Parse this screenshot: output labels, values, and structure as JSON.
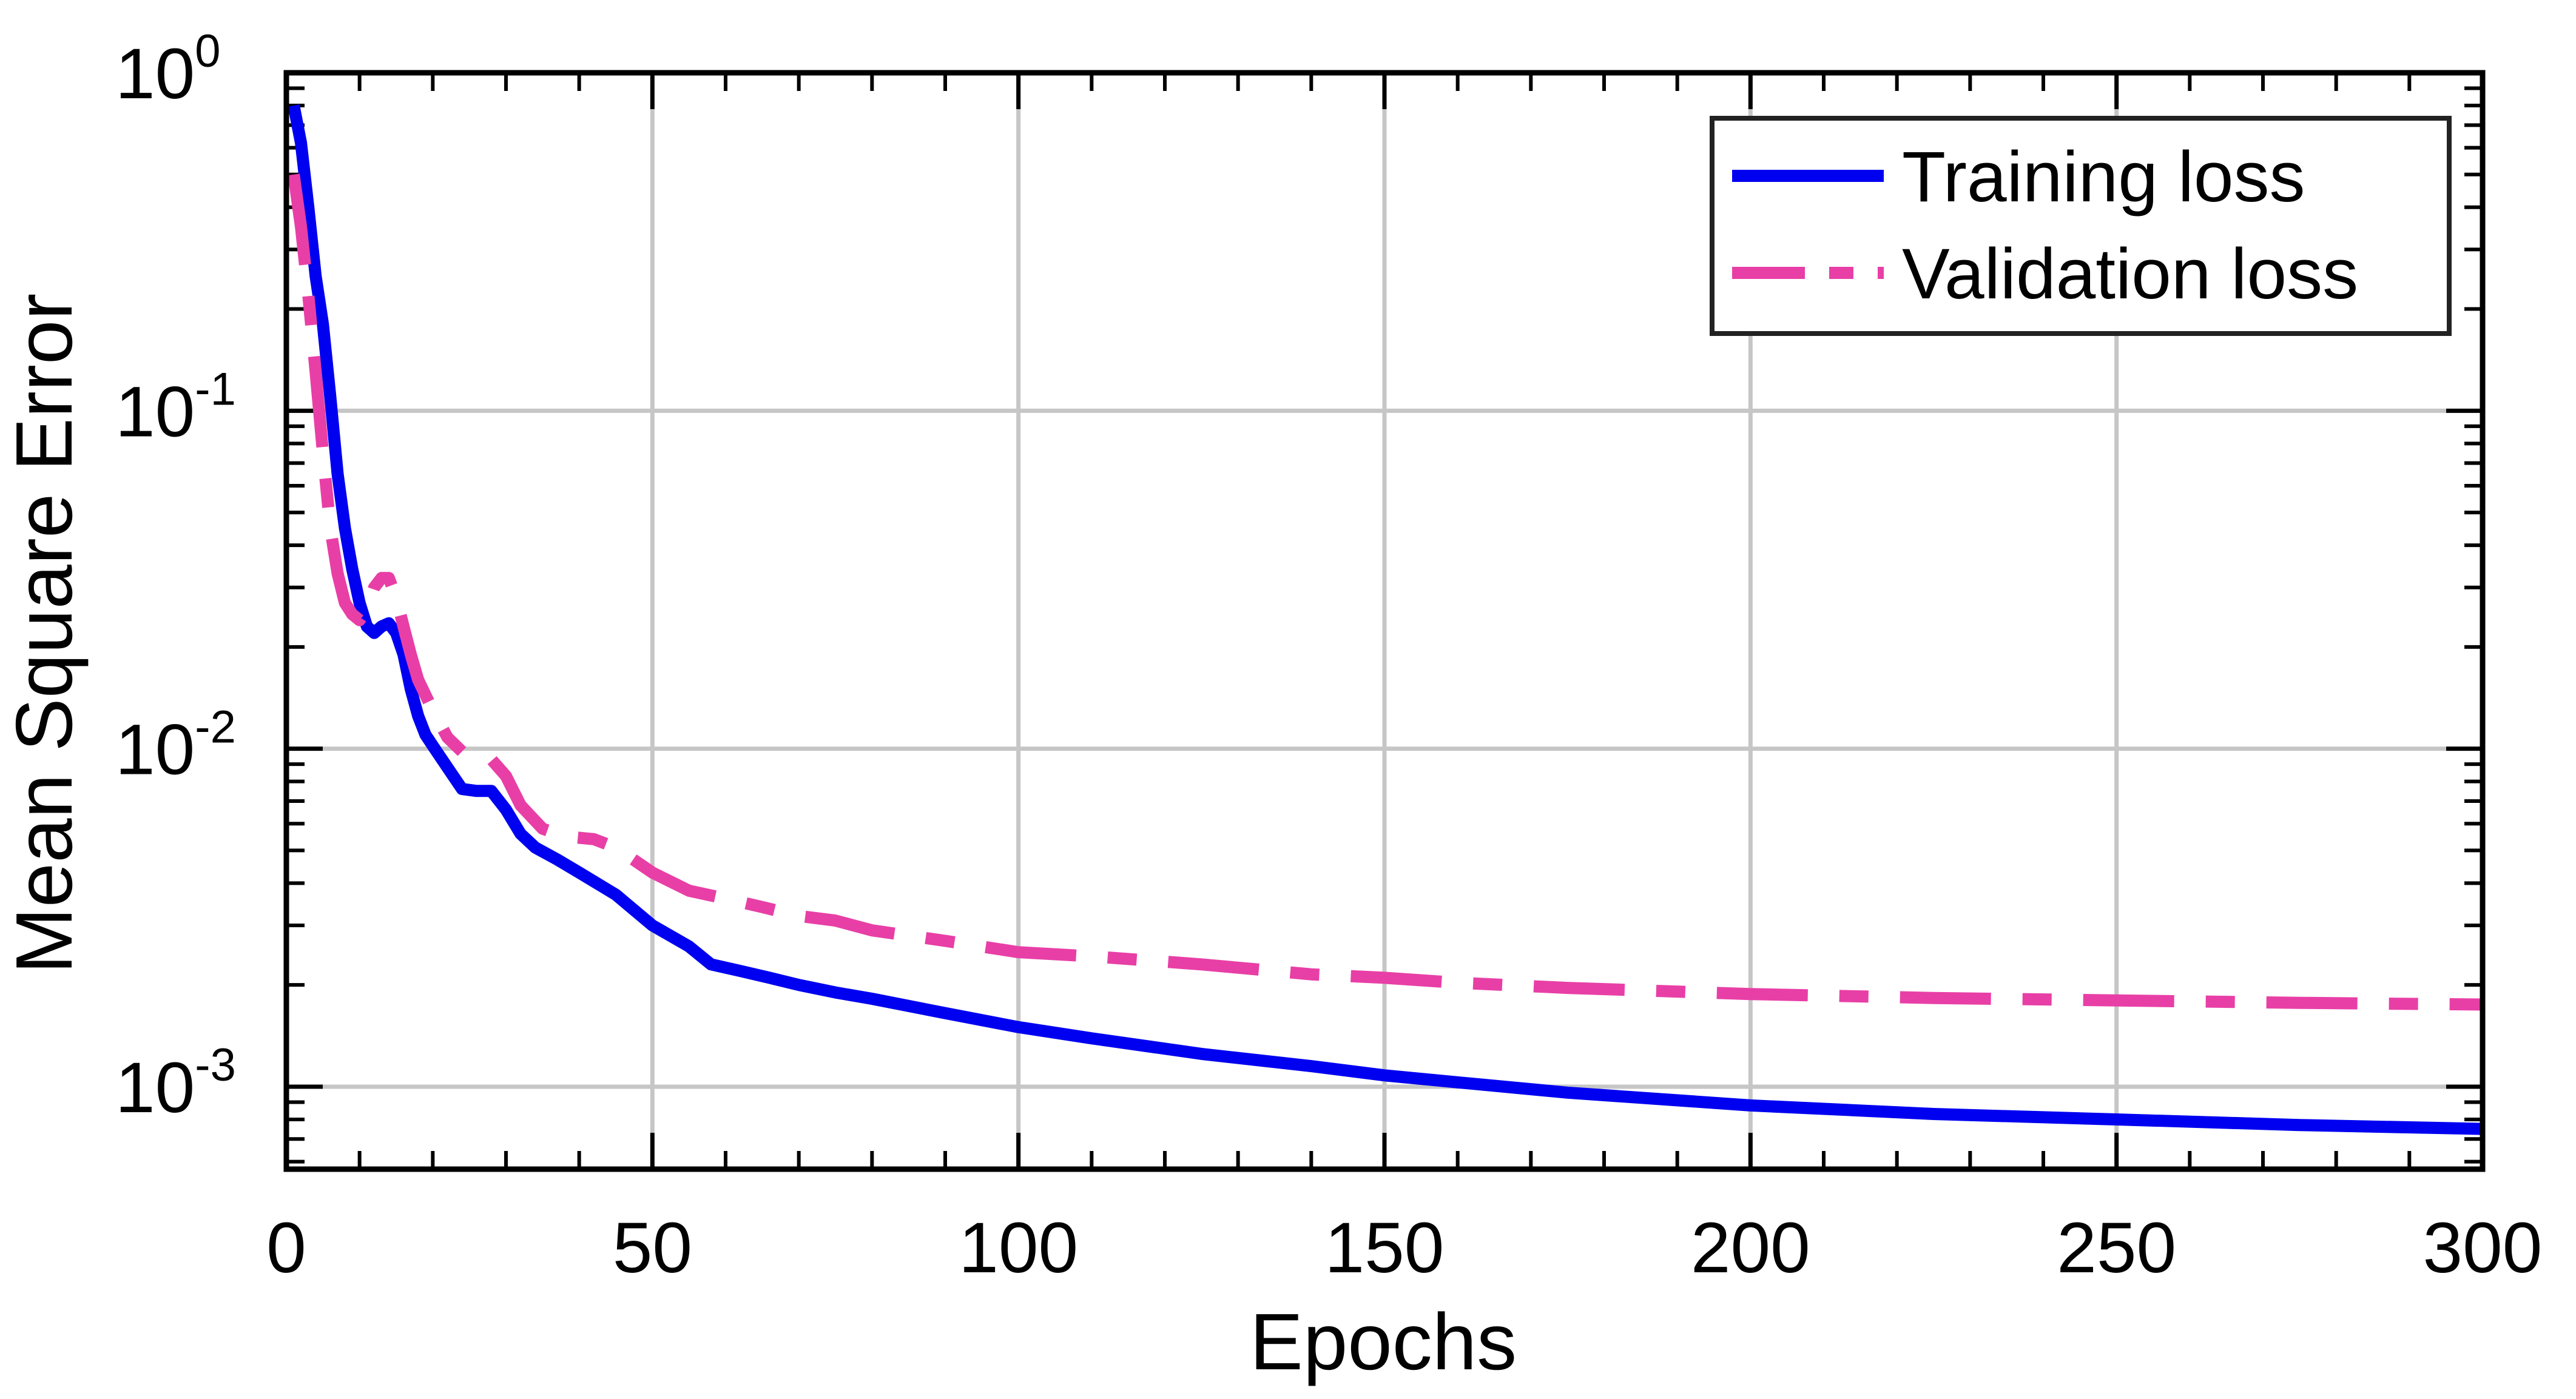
{
  "chart_data": {
    "type": "line",
    "title": "",
    "xlabel": "Epochs",
    "ylabel": "Mean Square Error",
    "xlim": [
      0,
      300
    ],
    "ylim": [
      0.00057,
      1
    ],
    "yscale": "log",
    "grid": true,
    "legend_position": "top-right",
    "x_ticks": [
      {
        "value": 0,
        "label": "0"
      },
      {
        "value": 50,
        "label": "50"
      },
      {
        "value": 100,
        "label": "100"
      },
      {
        "value": 150,
        "label": "150"
      },
      {
        "value": 200,
        "label": "200"
      },
      {
        "value": 250,
        "label": "250"
      },
      {
        "value": 300,
        "label": "300"
      }
    ],
    "y_ticks": [
      {
        "value": 1,
        "base": "10",
        "exp": "0"
      },
      {
        "value": 0.1,
        "base": "10",
        "exp": "-1"
      },
      {
        "value": 0.01,
        "base": "10",
        "exp": "-2"
      },
      {
        "value": 0.001,
        "base": "10",
        "exp": "-3"
      }
    ],
    "series": [
      {
        "name": "Training loss",
        "color": "#0000f0",
        "style": "solid",
        "x": [
          1,
          2,
          3,
          4,
          5,
          6,
          7,
          8,
          9,
          10,
          11,
          12,
          13,
          14,
          15,
          16,
          17,
          18,
          19,
          20,
          22,
          24,
          26,
          28,
          30,
          32,
          34,
          37,
          40,
          45,
          50,
          55,
          58,
          62,
          66,
          70,
          75,
          80,
          90,
          100,
          110,
          125,
          140,
          150,
          160,
          175,
          200,
          225,
          250,
          275,
          300
        ],
        "y": [
          0.8,
          0.62,
          0.4,
          0.25,
          0.18,
          0.11,
          0.065,
          0.045,
          0.034,
          0.027,
          0.023,
          0.022,
          0.023,
          0.0235,
          0.022,
          0.019,
          0.015,
          0.0125,
          0.011,
          0.0102,
          0.0088,
          0.0076,
          0.0075,
          0.0075,
          0.0066,
          0.0056,
          0.0051,
          0.0047,
          0.0043,
          0.0037,
          0.003,
          0.0026,
          0.0023,
          0.0022,
          0.0021,
          0.002,
          0.0019,
          0.00182,
          0.00165,
          0.0015,
          0.00139,
          0.00125,
          0.00115,
          0.00108,
          0.00103,
          0.00096,
          0.00088,
          0.00083,
          0.0008,
          0.00077,
          0.00075
        ]
      },
      {
        "name": "Validation loss",
        "color": "#e83fa6",
        "style": "dashdot",
        "x": [
          1,
          2,
          3,
          4,
          5,
          6,
          7,
          8,
          9,
          10,
          11,
          12,
          13,
          14,
          15,
          16,
          17,
          18,
          20,
          22,
          24,
          26,
          28,
          30,
          32,
          35,
          38,
          42,
          45,
          50,
          55,
          60,
          65,
          70,
          75,
          80,
          90,
          100,
          110,
          125,
          140,
          150,
          160,
          175,
          200,
          225,
          250,
          275,
          300
        ],
        "y": [
          0.5,
          0.35,
          0.22,
          0.13,
          0.075,
          0.045,
          0.033,
          0.027,
          0.025,
          0.024,
          0.026,
          0.03,
          0.032,
          0.032,
          0.028,
          0.023,
          0.019,
          0.016,
          0.013,
          0.0108,
          0.0098,
          0.0096,
          0.0093,
          0.0083,
          0.0068,
          0.0058,
          0.0055,
          0.0054,
          0.0051,
          0.0043,
          0.0038,
          0.0036,
          0.0034,
          0.0032,
          0.0031,
          0.0029,
          0.0027,
          0.0025,
          0.00243,
          0.0023,
          0.00215,
          0.0021,
          0.00203,
          0.00196,
          0.00188,
          0.00183,
          0.0018,
          0.00177,
          0.00175
        ]
      }
    ]
  }
}
